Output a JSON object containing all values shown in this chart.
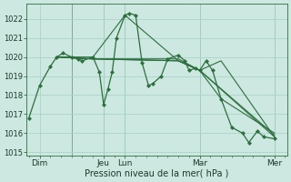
{
  "bg_color": "#cce8e0",
  "grid_color": "#aad4c8",
  "line_color": "#2d6e3e",
  "xlabel": "Pression niveau de la mer( hPa )",
  "ylim": [
    1014.8,
    1022.8
  ],
  "yticks": [
    1015,
    1016,
    1017,
    1018,
    1019,
    1020,
    1021,
    1022
  ],
  "xlim": [
    -0.1,
    12.1
  ],
  "day_ticks_x": [
    0.5,
    3.5,
    4.5,
    8.0,
    11.5
  ],
  "day_labels": [
    "Dim",
    "Jeu",
    "Lun",
    "Mar",
    "Mer"
  ],
  "vlines_x": [
    2.0,
    3.5,
    4.5,
    8.0,
    11.5
  ],
  "series": {
    "main": [
      [
        0.0,
        1016.8
      ],
      [
        0.5,
        1018.5
      ],
      [
        1.0,
        1019.5
      ],
      [
        1.3,
        1020.0
      ],
      [
        1.6,
        1020.2
      ],
      [
        2.0,
        1020.0
      ],
      [
        2.3,
        1019.9
      ],
      [
        2.5,
        1019.8
      ],
      [
        3.0,
        1020.0
      ],
      [
        3.3,
        1019.2
      ],
      [
        3.5,
        1017.5
      ],
      [
        3.7,
        1018.3
      ],
      [
        3.9,
        1019.2
      ],
      [
        4.1,
        1021.0
      ],
      [
        4.5,
        1022.2
      ],
      [
        4.7,
        1022.3
      ],
      [
        5.0,
        1022.2
      ],
      [
        5.3,
        1019.7
      ],
      [
        5.6,
        1018.5
      ],
      [
        5.8,
        1018.6
      ],
      [
        6.2,
        1019.0
      ],
      [
        6.5,
        1019.9
      ],
      [
        7.0,
        1020.1
      ],
      [
        7.3,
        1019.8
      ],
      [
        7.5,
        1019.3
      ],
      [
        7.8,
        1019.4
      ],
      [
        8.0,
        1019.3
      ],
      [
        8.3,
        1019.8
      ],
      [
        8.6,
        1019.3
      ],
      [
        9.0,
        1017.8
      ],
      [
        9.5,
        1016.3
      ],
      [
        10.0,
        1016.0
      ],
      [
        10.3,
        1015.5
      ],
      [
        10.7,
        1016.1
      ],
      [
        11.0,
        1015.8
      ],
      [
        11.5,
        1015.7
      ]
    ],
    "flat1": [
      [
        1.3,
        1020.0
      ],
      [
        3.0,
        1020.0
      ],
      [
        4.5,
        1022.2
      ],
      [
        7.0,
        1019.8
      ],
      [
        8.0,
        1019.3
      ],
      [
        9.0,
        1017.8
      ],
      [
        11.5,
        1016.0
      ]
    ],
    "flat2": [
      [
        1.3,
        1020.0
      ],
      [
        3.0,
        1019.9
      ],
      [
        7.0,
        1019.8
      ],
      [
        8.0,
        1019.3
      ],
      [
        9.0,
        1019.8
      ],
      [
        11.5,
        1015.8
      ]
    ],
    "flat3": [
      [
        1.3,
        1020.0
      ],
      [
        3.0,
        1019.9
      ],
      [
        7.0,
        1019.8
      ],
      [
        8.0,
        1019.3
      ],
      [
        11.5,
        1015.9
      ]
    ],
    "flat4": [
      [
        1.3,
        1020.0
      ],
      [
        3.0,
        1019.9
      ],
      [
        7.0,
        1019.9
      ],
      [
        8.0,
        1019.3
      ],
      [
        11.5,
        1015.8
      ]
    ]
  }
}
